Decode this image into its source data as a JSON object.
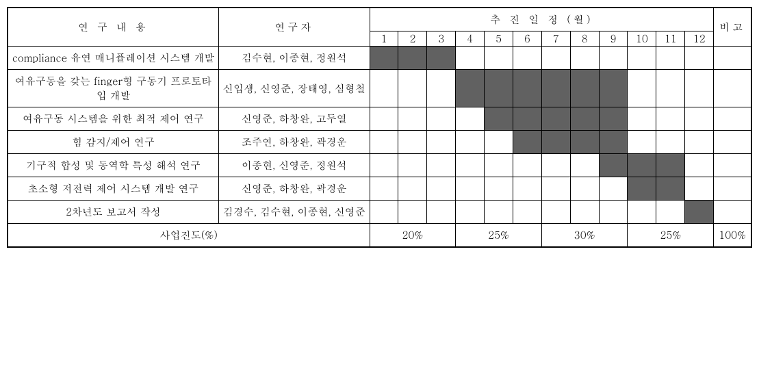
{
  "header": {
    "content": "연 구 내 용",
    "researcher": "연구자",
    "schedule": "추  진  일  정 (월)",
    "remark": "비고",
    "months": [
      "1",
      "2",
      "3",
      "4",
      "5",
      "6",
      "7",
      "8",
      "9",
      "10",
      "11",
      "12"
    ]
  },
  "rows": [
    {
      "content": "compliance 유연 매니퓰레이션 시스템 개발",
      "researcher": "김수현, 이종현, 정원석",
      "fill": [
        1,
        1,
        1,
        0,
        0,
        0,
        0,
        0,
        0,
        0,
        0,
        0
      ],
      "remark": ""
    },
    {
      "content": "여유구동을 갖는 finger형 구동기 프로토타입 개발",
      "researcher": "신입생, 신영준, 장태영, 심형철",
      "fill": [
        0,
        0,
        0,
        1,
        1,
        1,
        1,
        1,
        1,
        0,
        0,
        0
      ],
      "remark": ""
    },
    {
      "content": "여유구동 시스템을 위한 최적 제어 연구",
      "researcher": "신영준, 하창완, 고두열",
      "fill": [
        0,
        0,
        0,
        0,
        1,
        1,
        1,
        1,
        1,
        0,
        0,
        0
      ],
      "remark": ""
    },
    {
      "content": "힘 감지/제어 연구",
      "researcher": "조주연, 하창완, 곽경운",
      "fill": [
        0,
        0,
        0,
        0,
        0,
        1,
        1,
        1,
        1,
        0,
        0,
        0
      ],
      "remark": ""
    },
    {
      "content": "기구적 합성 및 동역학 특성 해석 연구",
      "researcher": "이종현, 신영준, 정원석",
      "fill": [
        0,
        0,
        0,
        0,
        0,
        0,
        0,
        0,
        1,
        1,
        1,
        0
      ],
      "remark": ""
    },
    {
      "content": "초소형 저전력 제어 시스템 개발 연구",
      "researcher": "신영준, 하창완, 곽경운",
      "fill": [
        0,
        0,
        0,
        0,
        0,
        0,
        0,
        0,
        0,
        1,
        1,
        0
      ],
      "remark": ""
    },
    {
      "content": "2차년도 보고서 작성",
      "researcher": "김경수, 김수현, 이종현, 신영준",
      "fill": [
        0,
        0,
        0,
        0,
        0,
        0,
        0,
        0,
        0,
        0,
        0,
        1
      ],
      "remark": ""
    }
  ],
  "footer": {
    "label": "사업진도(%)",
    "groups": [
      {
        "span": 3,
        "value": "20%"
      },
      {
        "span": 3,
        "value": "25%"
      },
      {
        "span": 3,
        "value": "30%"
      },
      {
        "span": 3,
        "value": "25%"
      }
    ],
    "total": "100%"
  },
  "style": {
    "fill_color": "#616161",
    "border_color": "#000000",
    "background": "#ffffff",
    "font_family": "Batang, Malgun Gothic, serif",
    "font_size_pt": 11,
    "col_widths": {
      "content": 280,
      "researcher": 200,
      "month": 38,
      "remark": 45
    }
  }
}
